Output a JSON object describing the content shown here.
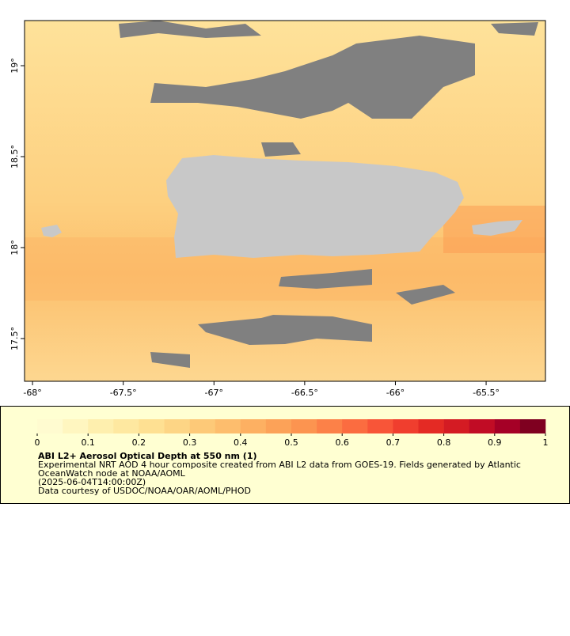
{
  "map": {
    "xlim": [
      -68.044,
      -65.173
    ],
    "ylim": [
      17.265,
      19.248
    ],
    "xticks": [
      {
        "value": -68,
        "label": "-68°"
      },
      {
        "value": -67.5,
        "label": "-67.5°"
      },
      {
        "value": -67,
        "label": "-67°"
      },
      {
        "value": -66.5,
        "label": "-66.5°"
      },
      {
        "value": -66,
        "label": "-66°"
      },
      {
        "value": -65.5,
        "label": "-65.5°"
      }
    ],
    "yticks": [
      {
        "value": 17.5,
        "label": "17.5°"
      },
      {
        "value": 18,
        "label": "18°"
      },
      {
        "value": 18.5,
        "label": "18.5°"
      },
      {
        "value": 19,
        "label": "19°"
      }
    ]
  },
  "colorbar": {
    "lim": [
      0,
      1
    ],
    "ticks": [
      0,
      0.1,
      0.2,
      0.3,
      0.4,
      0.5,
      0.6,
      0.7,
      0.8,
      0.9,
      1
    ],
    "colors": [
      "#fffbd0",
      "#fff6c0",
      "#feefae",
      "#fee8a0",
      "#fee092",
      "#fdd585",
      "#fdc978",
      "#fdbd6d",
      "#fdb062",
      "#fca258",
      "#fc9450",
      "#fc8148",
      "#fb6c40",
      "#f85538",
      "#f03e2e",
      "#e42a24",
      "#d41b23",
      "#c10c25",
      "#a50026",
      "#7f0020"
    ],
    "title": "ABI L2+ Aerosol Optical Depth at 550 nm (1)",
    "lines": [
      "Experimental NRT AOD 4 hour composite created from ABI L2 data from GOES-19. Fields generated by Atlantic",
      "OceanWatch node at NOAA/AOML",
      "(2025-06-04T14:00:00Z)",
      "Data courtesy of USDOC/NOAA/OAR/AOML/PHOD"
    ]
  }
}
